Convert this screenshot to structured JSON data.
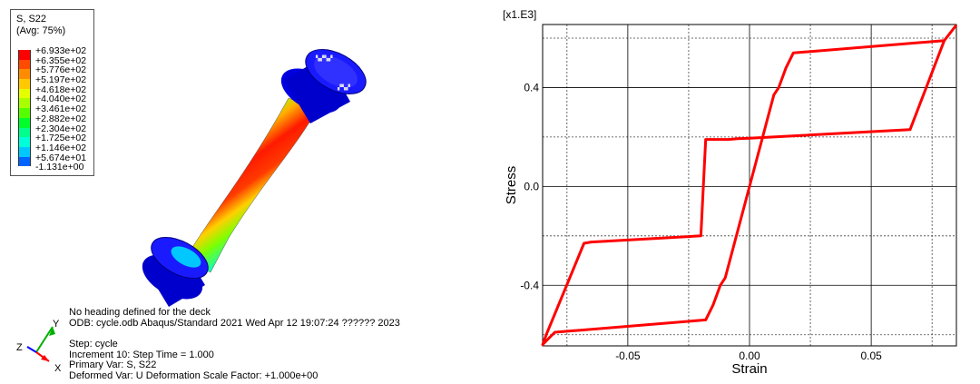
{
  "contour": {
    "legend": {
      "title_line1": "S, S22",
      "title_line2": "(Avg: 75%)",
      "values": [
        "+6.933e+02",
        "+6.355e+02",
        "+5.776e+02",
        "+5.197e+02",
        "+4.618e+02",
        "+4.040e+02",
        "+3.461e+02",
        "+2.882e+02",
        "+2.304e+02",
        "+1.725e+02",
        "+1.146e+02",
        "+5.674e+01",
        "-1.131e+00"
      ],
      "colors": [
        "#ff0000",
        "#ff4a00",
        "#ff8c00",
        "#ffc800",
        "#e6ff00",
        "#a8ff00",
        "#55ff00",
        "#00ff2a",
        "#00ff8c",
        "#00ffd8",
        "#00c8ff",
        "#0064ff",
        "#0000ff"
      ]
    },
    "info": {
      "heading": "No heading defined for the deck",
      "odb": "ODB: cycle.odb    Abaqus/Standard 2021    Wed Apr 12 19:07:24 ?????? 2023",
      "step": "Step: cycle",
      "increment": "Increment     10: Step Time =     1.000",
      "primary_var": "Primary Var: S, S22",
      "deformed_var": "Deformed Var: U   Deformation Scale Factor: +1.000e+00"
    },
    "triad": {
      "y": "Y",
      "z": "Z",
      "x": "X"
    }
  },
  "chart_data": {
    "type": "line",
    "xlabel": "Strain",
    "ylabel": "Stress",
    "multiplier_label": "[x1.E3]",
    "xlim": [
      -0.085,
      0.085
    ],
    "ylim": [
      -0.645,
      0.655
    ],
    "x_ticks": [
      -0.05,
      0.0,
      0.05
    ],
    "x_tick_labels": [
      "-0.05",
      "0.00",
      "0.05"
    ],
    "y_ticks": [
      -0.4,
      0.0,
      0.4
    ],
    "y_tick_labels": [
      "-0.4",
      "0.0",
      "0.4"
    ],
    "grid_solid_x": [
      -0.05,
      0.0,
      0.05
    ],
    "grid_dashed_x": [
      -0.075,
      -0.025,
      0.025,
      0.075
    ],
    "grid_solid_y": [
      -0.4,
      0.0,
      0.4
    ],
    "grid_dashed_y": [
      -0.6,
      -0.2,
      0.2,
      0.6
    ],
    "grid": true,
    "series": [
      {
        "color": "#ff0000",
        "x": [
          0.085,
          0.08,
          0.066,
          0.0,
          -0.005,
          -0.0085,
          -0.018,
          -0.02,
          -0.065,
          -0.068,
          -0.0835,
          -0.085,
          -0.08,
          -0.018,
          -0.015,
          -0.012,
          -0.01,
          0.0,
          0.01,
          0.012,
          0.015,
          0.018,
          0.08,
          0.085
        ],
        "y": [
          0.653,
          0.59,
          0.23,
          0.195,
          0.193,
          0.19,
          0.19,
          -0.2,
          -0.225,
          -0.23,
          -0.6,
          -0.64,
          -0.59,
          -0.54,
          -0.48,
          -0.4,
          -0.37,
          0.0,
          0.37,
          0.4,
          0.48,
          0.54,
          0.59,
          0.653
        ]
      }
    ]
  }
}
